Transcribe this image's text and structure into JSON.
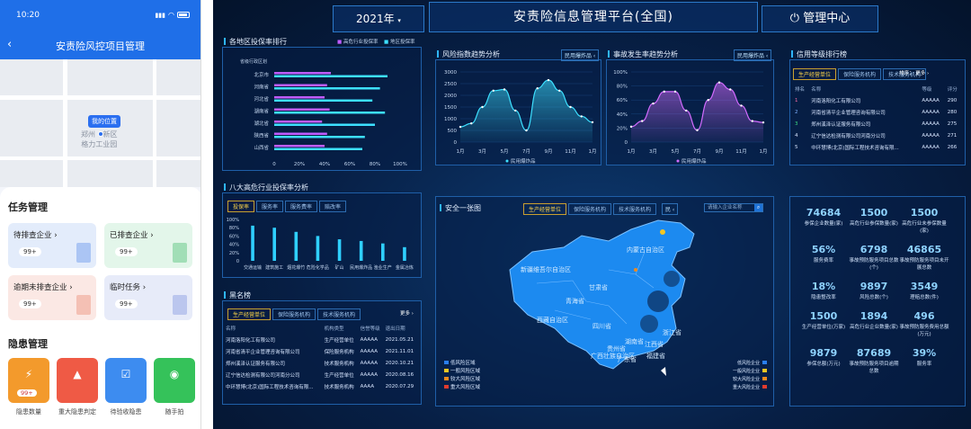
{
  "mobile": {
    "time": "10:20",
    "nav_title": "安责险风控项目管理",
    "map": {
      "my_position": "我的位置",
      "area_line1": "郑州",
      "area_line2": "新区",
      "area_line3": "格力工业园"
    },
    "task_title": "任务管理",
    "tasks": [
      {
        "label": "待排查企业",
        "count": "99+"
      },
      {
        "label": "已排查企业",
        "count": "99+"
      },
      {
        "label": "逾期未排查企业",
        "count": "99+"
      },
      {
        "label": "临时任务",
        "count": "99+"
      }
    ],
    "hazard_title": "隐患管理",
    "hazards": [
      {
        "label": "隐患数量",
        "count": "99+",
        "color": "#f39a2c"
      },
      {
        "label": "重大隐患判定",
        "count": "",
        "color": "#ef5a45"
      },
      {
        "label": "待验收隐患",
        "count": "",
        "color": "#3d8cf0"
      },
      {
        "label": "随手拍",
        "count": "",
        "color": "#35c25a"
      }
    ]
  },
  "dashboard": {
    "year": "2021年",
    "title": "安责险信息管理平台(全国)",
    "center": "管理中心",
    "regional": {
      "title": "各地区投保率排行",
      "legend": [
        "高危行业投保率",
        "地区投保率"
      ],
      "regions": [
        "省级行政区划",
        "北京市",
        "河南省",
        "河北省",
        "湖南省",
        "湖北省",
        "陕西省",
        "山西省"
      ],
      "xticks": [
        "0",
        "20%",
        "40%",
        "60%",
        "80%",
        "100%"
      ]
    },
    "risk_trend": {
      "title": "风险指数趋势分析",
      "filter": "民用爆炸品",
      "legend": "民用爆炸品",
      "yticks": [
        "3000",
        "2500",
        "2000",
        "1500",
        "1000",
        "500",
        "0"
      ],
      "xticks": [
        "1月",
        "3月",
        "5月",
        "7月",
        "9月",
        "11月",
        "1月"
      ]
    },
    "accident_trend": {
      "title": "事故发生率趋势分析",
      "filter": "民用爆炸品",
      "legend": "民用爆炸品",
      "yticks": [
        "100%",
        "80%",
        "60%",
        "40%",
        "20%",
        "0"
      ],
      "xticks": [
        "1月",
        "3月",
        "5月",
        "7月",
        "9月",
        "11月",
        "1月"
      ]
    },
    "credit": {
      "title": "信用等级排行榜",
      "tabs": [
        "生产经营单位",
        "保险服务机构",
        "技术服务机构"
      ],
      "sort": "排序：",
      "more": "更多",
      "headers": [
        "排名",
        "名称",
        "等级",
        "评分"
      ],
      "rows": [
        [
          "1",
          "河南洛阳化工有限公司",
          "AAAAA",
          "290"
        ],
        [
          "2",
          "河南省清平企业管理咨询有限公司",
          "AAAAA",
          "280"
        ],
        [
          "3",
          "郑州溪泽认证服务有限公司",
          "AAAAA",
          "275"
        ],
        [
          "4",
          "辽宁信达检测有限公司河南分公司",
          "AAAAA",
          "271"
        ],
        [
          "5",
          "中环慧博(北京)国际工程技术咨询有限...",
          "AAAAA",
          "266"
        ]
      ]
    },
    "industry": {
      "title": "八大高危行业投保率分析",
      "tabs": [
        "投保率",
        "服务率",
        "服务费率",
        "赔改率"
      ],
      "yticks": [
        "100%",
        "80%",
        "60%",
        "40%",
        "20%",
        "0"
      ],
      "categories": [
        "交通运输",
        "建筑施工",
        "烟花爆竹",
        "危险化学品",
        "矿山",
        "民用爆炸品",
        "渔业生产",
        "金属冶炼"
      ]
    },
    "blacklist": {
      "title": "黑名榜",
      "tabs": [
        "生产经营单位",
        "保险服务机构",
        "技术服务机构"
      ],
      "more": "更多",
      "headers": [
        "名称",
        "机构类型",
        "信誉等级",
        "退出日期"
      ],
      "rows": [
        [
          "河南洛阳化工有限公司",
          "生产经营单位",
          "AAAAA",
          "2021.05.21"
        ],
        [
          "河南省清平企业管理咨询有限公司",
          "保险服务机构",
          "AAAAA",
          "2021.11.01"
        ],
        [
          "郑州溪泽认证服务有限公司",
          "技术服务机构",
          "AAAAA",
          "2020.10.21"
        ],
        [
          "辽宁信达检测有限公司河南分公司",
          "生产经营单位",
          "AAAAA",
          "2020.08.16"
        ],
        [
          "中环慧博(北京)国际工程技术咨询有限...",
          "技术服务机构",
          "AAAA",
          "2020.07.29"
        ]
      ]
    },
    "map": {
      "title": "安全一张图",
      "tabs": [
        "生产经营单位",
        "保险服务机构",
        "技术服务机构"
      ],
      "search_placeholder": "请输入企业名称",
      "risk_legend": [
        "低风险区域",
        "一般风险区域",
        "较大风险区域",
        "重大风险区域"
      ],
      "risk_colors": [
        "#2a7ff0",
        "#f3c623",
        "#f08a1e",
        "#e23b2e"
      ],
      "ent_legend": [
        "低风险企业",
        "一般风险企业",
        "较大风险企业",
        "重大风险企业"
      ],
      "provinces": [
        "新疆维吾尔自治区",
        "西藏自治区",
        "青海省",
        "甘肃省",
        "四川省",
        "内蒙古自治区",
        "湖南省",
        "广东省",
        "贵州省",
        "江西省",
        "浙江省",
        "福建省",
        "广西壮族自治区"
      ]
    },
    "stats": [
      {
        "value": "74684",
        "label": "参保企业数量(家)"
      },
      {
        "value": "1500",
        "label": "高危行业参保数量(家)"
      },
      {
        "value": "1500",
        "label": "高危行业未参保数量(家)"
      },
      {
        "value": "56%",
        "label": "服务费率"
      },
      {
        "value": "6798",
        "label": "事故预防服务项目总数(个)"
      },
      {
        "value": "46865",
        "label": "事故预防服务项目未开展总数"
      },
      {
        "value": "18%",
        "label": "隐患整改率"
      },
      {
        "value": "9897",
        "label": "风险总数(个)"
      },
      {
        "value": "3549",
        "label": "理赔总数(件)"
      },
      {
        "value": "1500",
        "label": "生产经营单位(万家)"
      },
      {
        "value": "1894",
        "label": "高危行业企业数量(家)"
      },
      {
        "value": "496",
        "label": "事故预防服务费用总额(万元)"
      },
      {
        "value": "9879",
        "label": "参保总额(万元)"
      },
      {
        "value": "87689",
        "label": "事故预防服务项目逾期总数"
      },
      {
        "value": "39%",
        "label": "服务率"
      }
    ]
  },
  "chart_data": [
    {
      "type": "bar",
      "title": "各地区投保率排行",
      "categories": [
        "北京市",
        "河南省",
        "河北省",
        "湖南省",
        "湖北省",
        "陕西省",
        "山西省"
      ],
      "series": [
        {
          "name": "高危行业投保率",
          "values": [
            0.45,
            0.42,
            0.4,
            0.44,
            0.38,
            0.42,
            0.4
          ]
        },
        {
          "name": "地区投保率",
          "values": [
            0.9,
            0.84,
            0.78,
            0.88,
            0.8,
            0.72,
            0.7
          ]
        }
      ],
      "xlim": [
        0,
        1
      ]
    },
    {
      "type": "area",
      "title": "风险指数趋势分析",
      "x": [
        "1月",
        "2月",
        "3月",
        "4月",
        "5月",
        "6月",
        "7月",
        "8月",
        "9月",
        "10月",
        "11月",
        "12月",
        "1月"
      ],
      "series": [
        {
          "name": "民用爆炸品",
          "values": [
            650,
            800,
            1500,
            2200,
            2250,
            1350,
            500,
            2300,
            2650,
            2200,
            1500,
            1100,
            850
          ]
        }
      ],
      "ylim": [
        0,
        3000
      ]
    },
    {
      "type": "area",
      "title": "事故发生率趋势分析",
      "x": [
        "1月",
        "2月",
        "3月",
        "4月",
        "5月",
        "6月",
        "7月",
        "8月",
        "9月",
        "10月",
        "11月",
        "12月",
        "1月"
      ],
      "series": [
        {
          "name": "民用爆炸品",
          "values": [
            22,
            30,
            55,
            72,
            72,
            45,
            17,
            60,
            85,
            75,
            52,
            30,
            28
          ]
        }
      ],
      "ylim": [
        0,
        100
      ]
    },
    {
      "type": "bar",
      "title": "八大高危行业投保率分析",
      "categories": [
        "交通运输",
        "建筑施工",
        "烟花爆竹",
        "危险化学品",
        "矿山",
        "民用爆炸品",
        "渔业生产",
        "金属冶炼"
      ],
      "values": [
        85,
        80,
        70,
        60,
        52,
        48,
        42,
        33
      ],
      "ylim": [
        0,
        100
      ]
    }
  ]
}
